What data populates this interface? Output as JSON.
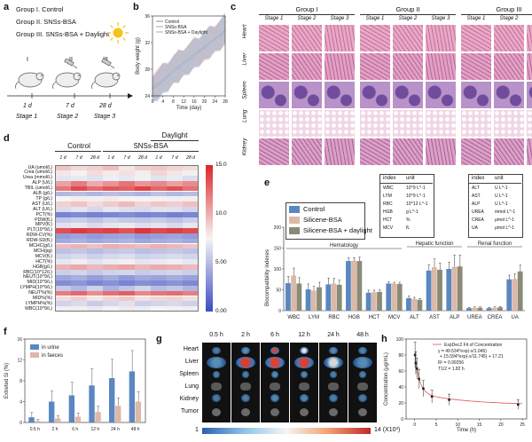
{
  "panel_a": {
    "label": "a",
    "groups": [
      "Group I. Control",
      "Group II. SNSs-BSA",
      "Group III. SNSs-BSA + Daylight"
    ],
    "roman": [
      "I",
      "II",
      "III"
    ],
    "days": [
      "1 d",
      "7 d",
      "28 d"
    ],
    "stages": [
      "Stage 1",
      "Stage 2",
      "Stage 3"
    ]
  },
  "panel_b": {
    "label": "b",
    "chart_data": {
      "type": "line",
      "xlabel": "Time (day)",
      "ylabel": "Body weight (g)",
      "xlim": [
        0,
        28
      ],
      "ylim": [
        24,
        36
      ],
      "xticks": [
        0,
        4,
        8,
        12,
        16,
        20,
        24,
        28
      ],
      "yticks": [
        24,
        28,
        32,
        36
      ],
      "series": [
        {
          "name": "Control",
          "color": "#9ea3a8",
          "x": [
            0,
            2,
            4,
            6,
            8,
            10,
            12,
            14,
            16,
            18,
            20,
            22,
            24,
            26,
            28
          ],
          "y": [
            25.0,
            25.6,
            26.4,
            27.0,
            27.8,
            28.3,
            29.0,
            29.6,
            30.1,
            30.6,
            31.3,
            32.0,
            32.5,
            33.1,
            33.8
          ]
        },
        {
          "name": "SNSs-BSA",
          "color": "#e8a0a0",
          "x": [
            0,
            2,
            4,
            6,
            8,
            10,
            12,
            14,
            16,
            18,
            20,
            22,
            24,
            26,
            28
          ],
          "y": [
            25.2,
            25.9,
            26.3,
            27.2,
            27.6,
            28.5,
            28.8,
            29.5,
            30.3,
            30.8,
            31.1,
            31.8,
            32.7,
            33.0,
            33.5
          ]
        },
        {
          "name": "SNSs-BSA + Daylight",
          "color": "#9cc0e0",
          "x": [
            0,
            2,
            4,
            6,
            8,
            10,
            12,
            14,
            16,
            18,
            20,
            22,
            24,
            26,
            28
          ],
          "y": [
            24.9,
            25.5,
            26.2,
            26.8,
            27.9,
            28.1,
            29.1,
            29.4,
            30.0,
            30.9,
            31.5,
            31.9,
            32.4,
            33.2,
            34.0
          ]
        }
      ]
    }
  },
  "panel_c": {
    "label": "c",
    "groups": [
      "Group I",
      "Group II",
      "Group III"
    ],
    "stages": [
      "Stage 1",
      "Stage 2",
      "Stage 3"
    ],
    "organs": [
      "Heart",
      "Liver",
      "Spleen",
      "Lung",
      "Kidney"
    ]
  },
  "panel_d": {
    "label": "d",
    "top_headers": [
      "Control",
      "SNSs-BSA",
      "Daylight"
    ],
    "col_labels": [
      "1 d",
      "7 d",
      "28 d",
      "1 d",
      "7 d",
      "28 d",
      "1 d",
      "7 d",
      "28 d"
    ],
    "row_labels": [
      "UA (umol/L)",
      "Crea (umol/L)",
      "Urea (mmol/L)",
      "ALP (U/L)",
      "TBIL (umol/L)",
      "ALB (g/L)",
      "TP (g/L)",
      "AST (U/L)",
      "ALT (U/L)",
      "PCT(%)",
      "PDW(fL)",
      "MPV(fL)",
      "PLT(10^9/L)",
      "RDW-CV(%)",
      "RDW-SD(fL)",
      "MCHC(g/L)",
      "MCH(pg)",
      "MCV(fL)",
      "HCT(%)",
      "HGB(g/L)",
      "RBC(10^12/L)",
      "NEUT(10^9/L)",
      "MID(10^9/L)",
      "LYMPH(10^9/L)",
      "NEUT%(%)",
      "MID%(%)",
      "LYMPH%(%)",
      "WBC(10^9/L)"
    ],
    "colorbar_ticks": [
      "15.0",
      "10.0",
      "5.00",
      "0.00"
    ],
    "chart_data": {
      "type": "heatmap",
      "vmin": 0,
      "vmax": 15,
      "values": [
        [
          9.2,
          8.5,
          8.8,
          9.5,
          8.0,
          8.9,
          9.1,
          8.7,
          8.4
        ],
        [
          8.0,
          7.6,
          8.4,
          7.9,
          8.2,
          7.8,
          8.6,
          8.1,
          7.7
        ],
        [
          6.8,
          7.0,
          6.6,
          7.2,
          6.9,
          7.3,
          6.7,
          7.1,
          6.5
        ],
        [
          10.5,
          11.8,
          10.2,
          11.0,
          12.1,
          10.9,
          11.4,
          10.6,
          11.3
        ],
        [
          12.0,
          13.6,
          12.4,
          13.2,
          12.8,
          13.9,
          12.6,
          13.4,
          12.2
        ],
        [
          4.8,
          5.0,
          4.7,
          5.1,
          4.9,
          4.6,
          5.2,
          4.8,
          5.0
        ],
        [
          7.5,
          7.8,
          7.3,
          7.9,
          7.6,
          7.4,
          7.7,
          7.2,
          7.8
        ],
        [
          8.8,
          9.3,
          8.5,
          9.0,
          9.6,
          8.7,
          9.2,
          8.9,
          9.4
        ],
        [
          6.4,
          6.8,
          6.2,
          6.9,
          6.5,
          6.3,
          6.7,
          6.6,
          6.1
        ],
        [
          2.5,
          2.8,
          2.4,
          2.6,
          2.9,
          2.5,
          2.7,
          2.3,
          2.6
        ],
        [
          5.5,
          5.8,
          5.3,
          5.9,
          5.6,
          5.4,
          5.7,
          5.2,
          5.8
        ],
        [
          6.6,
          6.9,
          6.4,
          6.8,
          7.0,
          6.5,
          6.7,
          6.3,
          6.9
        ],
        [
          13.5,
          14.2,
          13.8,
          14.0,
          13.3,
          14.4,
          13.7,
          14.1,
          13.6
        ],
        [
          3.6,
          3.9,
          3.5,
          3.8,
          4.0,
          3.4,
          3.7,
          3.9,
          3.6
        ],
        [
          4.2,
          4.5,
          4.1,
          4.4,
          4.6,
          4.0,
          4.3,
          4.5,
          4.2
        ],
        [
          9.6,
          9.9,
          9.4,
          10.1,
          9.8,
          9.5,
          10.0,
          9.7,
          9.3
        ],
        [
          5.2,
          5.5,
          5.0,
          5.4,
          5.6,
          5.1,
          5.3,
          5.5,
          5.2
        ],
        [
          6.1,
          6.4,
          5.9,
          6.3,
          6.5,
          6.0,
          6.2,
          6.4,
          6.1
        ],
        [
          6.9,
          7.2,
          6.7,
          7.1,
          7.3,
          6.8,
          7.0,
          7.2,
          6.9
        ],
        [
          9.9,
          10.3,
          9.7,
          10.1,
          10.4,
          9.8,
          10.2,
          10.0,
          9.6
        ],
        [
          5.8,
          6.1,
          5.6,
          6.0,
          6.2,
          5.7,
          5.9,
          6.1,
          5.8
        ],
        [
          4.0,
          4.4,
          3.7,
          4.2,
          3.5,
          4.1,
          3.9,
          4.3,
          3.8
        ],
        [
          2.9,
          3.3,
          2.6,
          3.1,
          2.5,
          3.0,
          2.8,
          3.2,
          2.7
        ],
        [
          5.6,
          4.8,
          5.9,
          4.5,
          5.3,
          6.1,
          5.0,
          5.4,
          4.7
        ],
        [
          11.8,
          12.6,
          11.2,
          12.3,
          12.9,
          11.5,
          12.1,
          12.4,
          11.7
        ],
        [
          8.4,
          8.9,
          8.1,
          8.7,
          9.1,
          8.2,
          8.6,
          8.8,
          8.3
        ],
        [
          6.0,
          6.4,
          5.7,
          6.2,
          6.6,
          5.8,
          6.1,
          6.3,
          5.9
        ],
        [
          7.3,
          7.8,
          7.0,
          7.6,
          8.0,
          7.1,
          7.5,
          7.7,
          7.2
        ]
      ]
    }
  },
  "panel_e": {
    "label": "e",
    "legend": [
      "Control",
      "Silicene-BSA",
      "Silicene-BSA + daylight"
    ],
    "index_table_1": {
      "head": [
        "index",
        "unit"
      ],
      "rows": [
        [
          "WBC",
          "10^9 L^-1"
        ],
        [
          "LYM",
          "10^9 L^-1"
        ],
        [
          "RBC",
          "10^12 L^-1"
        ],
        [
          "HGB",
          "g L^-1"
        ],
        [
          "HCT",
          "%"
        ],
        [
          "MCV",
          "fL"
        ]
      ]
    },
    "index_table_2": {
      "head": [
        "index",
        "unit"
      ],
      "rows": [
        [
          "ALT",
          "U L^-1"
        ],
        [
          "AST",
          "U L^-1"
        ],
        [
          "ALP",
          "U L^-1"
        ],
        [
          "UREA",
          "mmol L^-1"
        ],
        [
          "CREA",
          "μmol L^-1"
        ],
        [
          "UA",
          "μmol L^-1"
        ]
      ]
    },
    "group_labels": [
      "Hematology",
      "Hepatic function",
      "Renal function"
    ],
    "chart_data": {
      "type": "bar",
      "ylabel": "Biocompatibility indexes",
      "ylim": [
        0,
        200
      ],
      "yticks": [
        0,
        50,
        100,
        150,
        200
      ],
      "categories": [
        "WBC",
        "LYM",
        "RBC",
        "HGB",
        "HCT",
        "MCV",
        "ALT",
        "AST",
        "ALP",
        "UREA",
        "CREA",
        "UA"
      ],
      "series": [
        {
          "name": "Control",
          "color": "#5b87c0",
          "values": [
            66,
            51,
            63,
            119,
            43,
            65,
            30,
            96,
            100,
            6,
            6,
            75
          ]
        },
        {
          "name": "Silicene-BSA",
          "color": "#dcb8a8",
          "values": [
            84,
            48,
            65,
            120,
            44,
            65,
            28,
            104,
            105,
            7,
            7,
            76
          ]
        },
        {
          "name": "Silicene-BSA + daylight",
          "color": "#8a8a76",
          "values": [
            65,
            56,
            62,
            119,
            45,
            64,
            26,
            98,
            106,
            7,
            8,
            94
          ]
        }
      ],
      "errors": [
        [
          16,
          13,
          15,
          8,
          6,
          4,
          5,
          14,
          16,
          2,
          2,
          10
        ],
        [
          18,
          10,
          12,
          7,
          5,
          3,
          4,
          20,
          28,
          2,
          2,
          12
        ],
        [
          14,
          12,
          11,
          9,
          5,
          4,
          3,
          16,
          27,
          2,
          2,
          15
        ]
      ]
    }
  },
  "panel_f": {
    "label": "f",
    "chart_data": {
      "type": "bar",
      "ylabel": "Extreted Si (%)",
      "ylim": [
        0,
        16
      ],
      "yticks": [
        0,
        4,
        8,
        12,
        16
      ],
      "categories": [
        "0.5 h",
        "2 h",
        "6 h",
        "12 h",
        "24 h",
        "48 h"
      ],
      "series": [
        {
          "name": "in urine",
          "color": "#5b87c0",
          "values": [
            1.0,
            4.0,
            5.2,
            7.1,
            8.5,
            9.8
          ]
        },
        {
          "name": "in faeces",
          "color": "#dcb8a8",
          "values": [
            0.3,
            0.8,
            1.1,
            2.0,
            3.2,
            4.0
          ]
        }
      ],
      "errors": [
        [
          0.9,
          2.0,
          2.5,
          3.2,
          3.6,
          4.0
        ],
        [
          0.3,
          0.5,
          0.7,
          1.1,
          1.5,
          1.9
        ]
      ]
    }
  },
  "panel_g": {
    "label": "g",
    "times": [
      "0.5 h",
      "2 h",
      "6 h",
      "12 h",
      "24 h",
      "48 h"
    ],
    "organs": [
      "Heart",
      "Liver",
      "Spleen",
      "Lung",
      "Kidney",
      "Tumor"
    ],
    "colorbar_min": "1",
    "colorbar_max": "14 (X10³)",
    "intensity": [
      [
        0.25,
        0.55,
        0.95,
        0.85,
        0.45,
        0.35
      ],
      [
        0.55,
        0.9,
        1.0,
        0.95,
        0.7,
        0.5
      ],
      [
        0.2,
        0.3,
        0.45,
        0.4,
        0.3,
        0.25
      ]
    ]
  },
  "panel_h": {
    "label": "h",
    "legend": "ExpDec2 Fit of Concentration",
    "equation": "y = 49.534*exp(-x/1.046)",
    "equation2": "+ 15.594*exp(-x/11.745) + 17.21",
    "r2": "R² = 0.99256",
    "half_life": "T1/2 = 1.82 h",
    "chart_data": {
      "type": "scatter",
      "xlabel": "Time (h)",
      "ylabel": "Concentration (μg/mL)",
      "xlim": [
        -2,
        26
      ],
      "ylim": [
        0,
        100
      ],
      "xticks": [
        0,
        5,
        10,
        15,
        20,
        25
      ],
      "yticks": [
        0,
        20,
        40,
        60,
        80,
        100
      ],
      "points": [
        {
          "x": 0.083,
          "y": 80,
          "err": 16
        },
        {
          "x": 0.25,
          "y": 70,
          "err": 14
        },
        {
          "x": 0.5,
          "y": 63,
          "err": 13
        },
        {
          "x": 1,
          "y": 50,
          "err": 12
        },
        {
          "x": 2,
          "y": 38,
          "err": 10
        },
        {
          "x": 4,
          "y": 28,
          "err": 8
        },
        {
          "x": 8,
          "y": 24,
          "err": 7
        },
        {
          "x": 24,
          "y": 18,
          "err": 6
        }
      ]
    }
  }
}
